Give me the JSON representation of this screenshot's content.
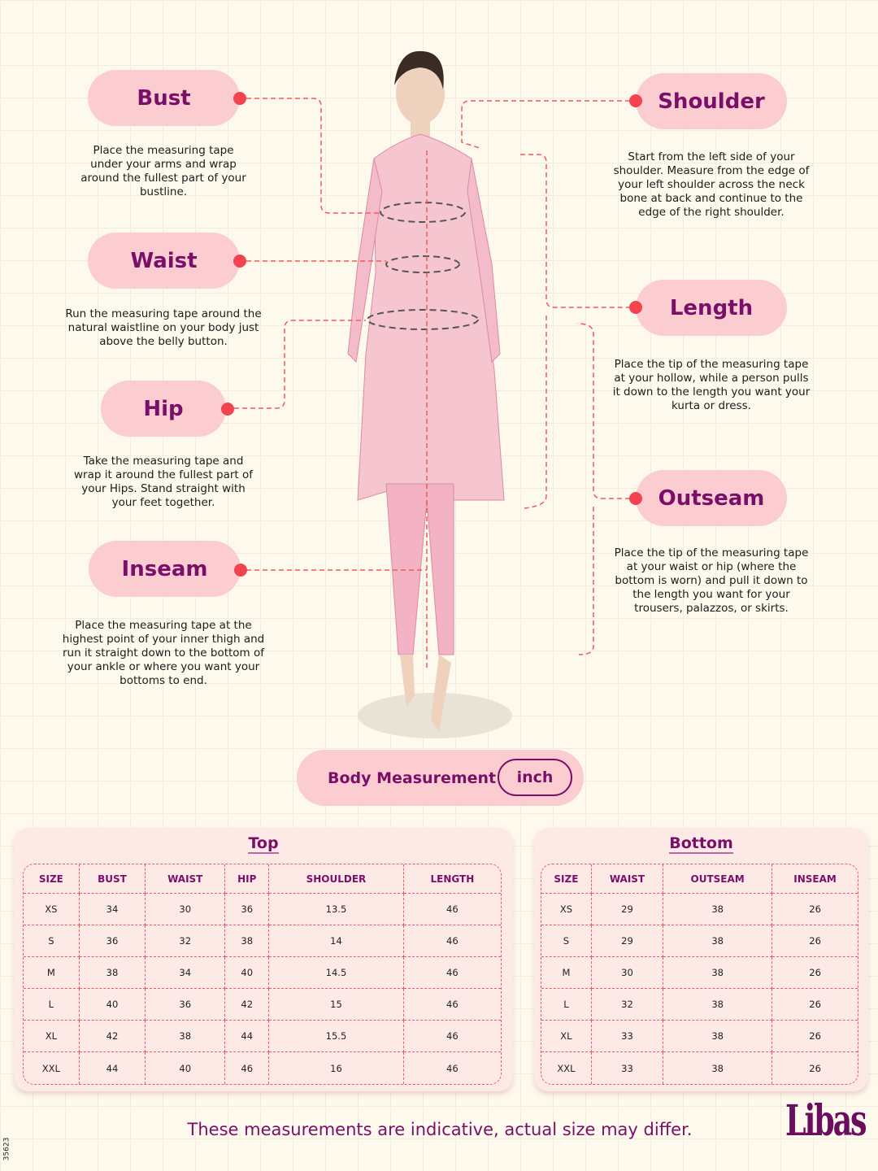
{
  "measurements": {
    "bust": {
      "label": "Bust",
      "desc": "Place the measuring tape under your arms and wrap around the fullest part of your bustline."
    },
    "waist": {
      "label": "Waist",
      "desc": "Run the measuring tape around the natural waistline on your body just above the belly button."
    },
    "hip": {
      "label": "Hip",
      "desc": "Take the measuring tape and wrap it around the fullest part of your Hips. Stand straight with your feet together."
    },
    "inseam": {
      "label": "Inseam",
      "desc": "Place the measuring tape at the highest point of your inner thigh and run it straight down to the bottom of your ankle or where you want your bottoms to end."
    },
    "shoulder": {
      "label": "Shoulder",
      "desc": "Start from the left side of your shoulder. Measure from the edge of your left shoulder across the neck bone at back and continue to the edge of the right shoulder."
    },
    "length": {
      "label": "Length",
      "desc": "Place the tip of the measuring tape at your hollow, while a person pulls it down to the length you want your kurta or dress."
    },
    "outseam": {
      "label": "Outseam",
      "desc": "Place the tip of the measuring tape at your waist or hip (where the bottom is worn) and pull it down to the length you want for your trousers, palazzos, or skirts."
    }
  },
  "body_measurement": {
    "label": "Body Measurement",
    "unit": "inch"
  },
  "top_table": {
    "title": "Top",
    "headers": [
      "SIZE",
      "BUST",
      "WAIST",
      "HIP",
      "SHOULDER",
      "LENGTH"
    ],
    "rows": [
      [
        "XS",
        "34",
        "30",
        "36",
        "13.5",
        "46"
      ],
      [
        "S",
        "36",
        "32",
        "38",
        "14",
        "46"
      ],
      [
        "M",
        "38",
        "34",
        "40",
        "14.5",
        "46"
      ],
      [
        "L",
        "40",
        "36",
        "42",
        "15",
        "46"
      ],
      [
        "XL",
        "42",
        "38",
        "44",
        "15.5",
        "46"
      ],
      [
        "XXL",
        "44",
        "40",
        "46",
        "16",
        "46"
      ]
    ]
  },
  "bottom_table": {
    "title": "Bottom",
    "headers": [
      "SIZE",
      "WAIST",
      "OUTSEAM",
      "INSEAM"
    ],
    "rows": [
      [
        "XS",
        "29",
        "38",
        "26"
      ],
      [
        "S",
        "29",
        "38",
        "26"
      ],
      [
        "M",
        "30",
        "38",
        "26"
      ],
      [
        "L",
        "32",
        "38",
        "26"
      ],
      [
        "XL",
        "33",
        "38",
        "26"
      ],
      [
        "XXL",
        "33",
        "38",
        "26"
      ]
    ]
  },
  "footer": {
    "note": "These measurements are indicative, actual size may differ.",
    "logo": "Libas",
    "code": "35623"
  },
  "colors": {
    "accent": "#7a0f6a",
    "pill": "#fbcdd0",
    "dash": "#f3585c",
    "background": "#fdf9ec"
  }
}
